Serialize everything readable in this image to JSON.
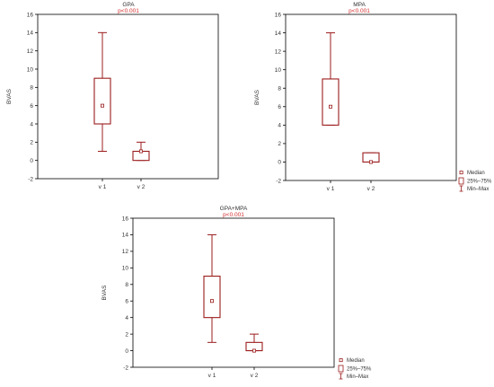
{
  "colors": {
    "box": "#9b1c1c",
    "axis": "#000000",
    "pvalue": "#d32f2f",
    "text": "#333333"
  },
  "legend": {
    "median": "Median",
    "box": "25%–75%",
    "whisker": "Min–Max"
  },
  "chart_data": [
    {
      "type": "box",
      "title": "GPA",
      "subtitle": "p<0.001",
      "ylabel": "BVAS",
      "ylim": [
        -2,
        16
      ],
      "yticks": [
        -2,
        0,
        2,
        4,
        6,
        8,
        10,
        12,
        14,
        16
      ],
      "categories": [
        "v 1",
        "v 2"
      ],
      "stats": [
        {
          "category": "v 1",
          "min": 1,
          "q1": 4,
          "median": 6,
          "q3": 9,
          "max": 14
        },
        {
          "category": "v 2",
          "min": 0,
          "q1": 0,
          "median": 1,
          "q3": 1,
          "max": 2
        }
      ],
      "legend": false
    },
    {
      "type": "box",
      "title": "MPA",
      "subtitle": "p<0.001",
      "ylabel": "BVAS",
      "ylim": [
        -2,
        16
      ],
      "yticks": [
        -2,
        0,
        2,
        4,
        6,
        8,
        10,
        12,
        14,
        16
      ],
      "categories": [
        "v 1",
        "v 2"
      ],
      "stats": [
        {
          "category": "v 1",
          "min": 4,
          "q1": 4,
          "median": 6,
          "q3": 9,
          "max": 14
        },
        {
          "category": "v 2",
          "min": 0,
          "q1": 0,
          "median": 0,
          "q3": 1,
          "max": 1
        }
      ],
      "legend": true
    },
    {
      "type": "box",
      "title": "GPA+MPA",
      "subtitle": "p<0.001",
      "ylabel": "BVAS",
      "ylim": [
        -2,
        16
      ],
      "yticks": [
        -2,
        0,
        2,
        4,
        6,
        8,
        10,
        12,
        14,
        16
      ],
      "categories": [
        "v 1",
        "v 2"
      ],
      "stats": [
        {
          "category": "v 1",
          "min": 1,
          "q1": 4,
          "median": 6,
          "q3": 9,
          "max": 14
        },
        {
          "category": "v 2",
          "min": 0,
          "q1": 0,
          "median": 0,
          "q3": 1,
          "max": 2
        }
      ],
      "legend": true
    }
  ]
}
